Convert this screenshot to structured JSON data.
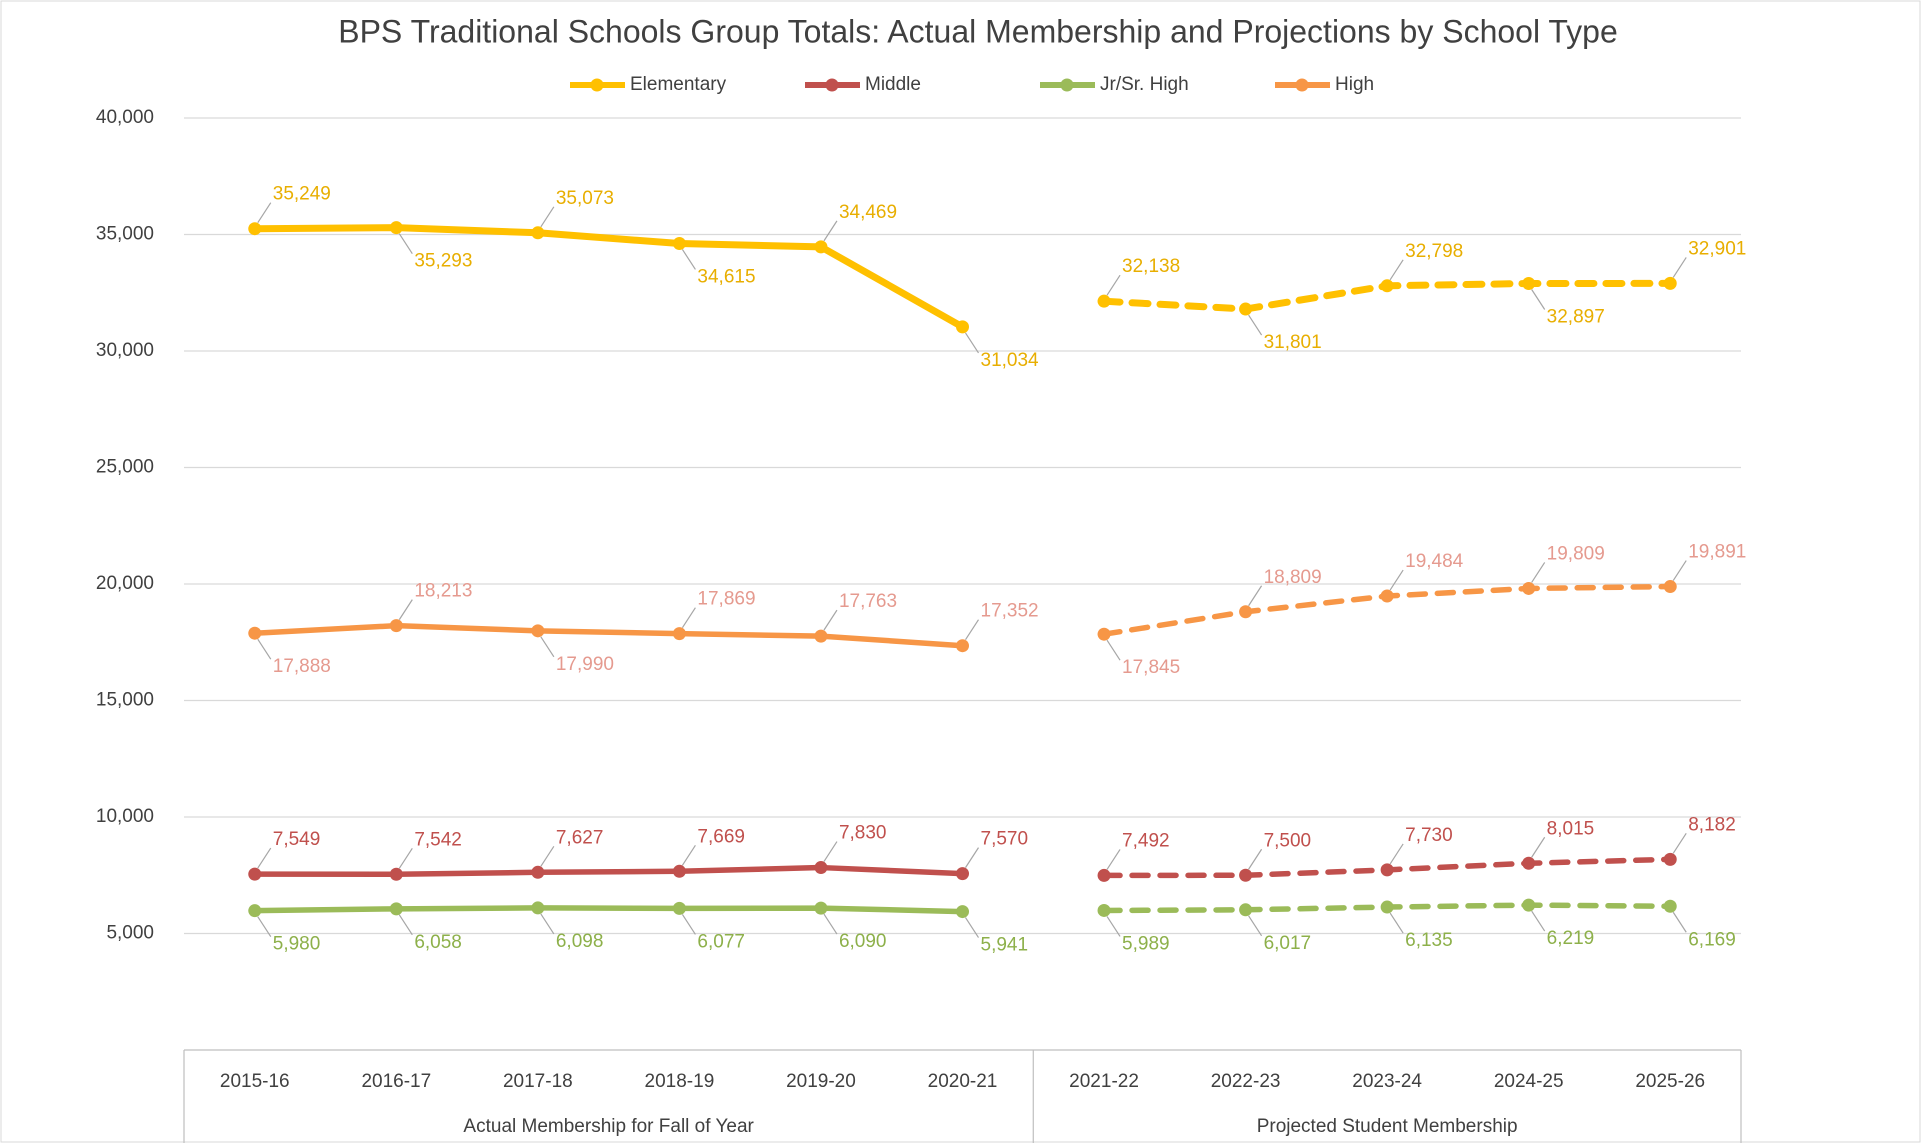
{
  "chart_data": {
    "type": "line",
    "title": "BPS Traditional Schools Group Totals: Actual Membership and Projections by School Type",
    "groups": [
      {
        "label": "Actual Membership for Fall of Year",
        "line_style": "solid",
        "categories": [
          "2015-16",
          "2016-17",
          "2017-18",
          "2018-19",
          "2019-20",
          "2020-21"
        ]
      },
      {
        "label": "Projected Student Membership",
        "line_style": "dashed",
        "categories": [
          "2021-22",
          "2022-23",
          "2023-24",
          "2024-25",
          "2025-26"
        ]
      }
    ],
    "series": [
      {
        "name": "Elementary",
        "color": "#FFC000",
        "label_color": "#E8AE00",
        "values": [
          35249,
          35293,
          35073,
          34615,
          34469,
          31034,
          32138,
          31801,
          32798,
          32897,
          32901
        ],
        "value_labels": [
          "35,249",
          "35,293",
          "35,073",
          "34,615",
          "34,469",
          "31,034",
          "32,138",
          "31,801",
          "32,798",
          "32,897",
          "32,901"
        ]
      },
      {
        "name": "Middle",
        "color": "#C0504D",
        "label_color": "#C0504D",
        "values": [
          7549,
          7542,
          7627,
          7669,
          7830,
          7570,
          7492,
          7500,
          7730,
          8015,
          8182
        ],
        "value_labels": [
          "7,549",
          "7,542",
          "7,627",
          "7,669",
          "7,830",
          "7,570",
          "7,492",
          "7,500",
          "7,730",
          "8,015",
          "8,182"
        ]
      },
      {
        "name": "Jr/Sr. High",
        "color": "#9BBB59",
        "label_color": "#8DB04A",
        "values": [
          5980,
          6058,
          6098,
          6077,
          6090,
          5941,
          5989,
          6017,
          6135,
          6219,
          6169
        ],
        "value_labels": [
          "5,980",
          "6,058",
          "6,098",
          "6,077",
          "6,090",
          "5,941",
          "5,989",
          "6,017",
          "6,135",
          "6,219",
          "6,169"
        ]
      },
      {
        "name": "High",
        "color": "#F79646",
        "label_color": "#E59A8F",
        "values": [
          17888,
          18213,
          17990,
          17869,
          17763,
          17352,
          17845,
          18809,
          19484,
          19809,
          19891
        ],
        "value_labels": [
          "17,888",
          "18,213",
          "17,990",
          "17,869",
          "17,763",
          "17,352",
          "17,845",
          "18,809",
          "19,484",
          "19,809",
          "19,891"
        ]
      }
    ],
    "ylim": [
      0,
      40000
    ],
    "yticks": [
      {
        "value": 5000,
        "label": "5,000"
      },
      {
        "value": 10000,
        "label": "10,000"
      },
      {
        "value": 15000,
        "label": "15,000"
      },
      {
        "value": 20000,
        "label": "20,000"
      },
      {
        "value": 25000,
        "label": "25,000"
      },
      {
        "value": 30000,
        "label": "30,000"
      },
      {
        "value": 35000,
        "label": "35,000"
      },
      {
        "value": 40000,
        "label": "40,000"
      }
    ],
    "grid": true,
    "legend": "top"
  }
}
